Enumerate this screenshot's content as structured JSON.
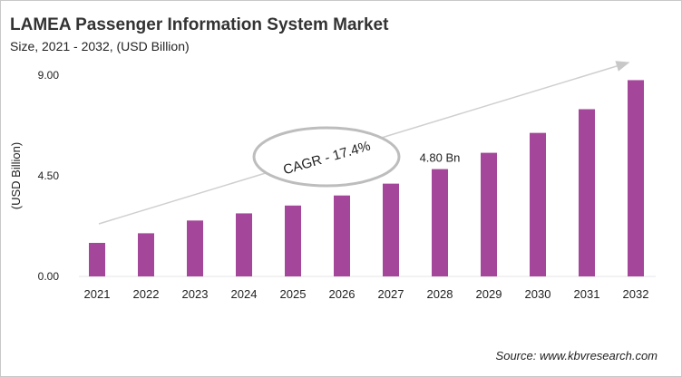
{
  "chart_data": {
    "type": "bar",
    "title": "LAMEA Passenger Information System Market",
    "subtitle": "Size, 2021 - 2032, (USD Billion)",
    "ylabel": "(USD Billion)",
    "xlabel": "",
    "categories": [
      "2021",
      "2022",
      "2023",
      "2024",
      "2025",
      "2026",
      "2027",
      "2028",
      "2029",
      "2030",
      "2031",
      "2032"
    ],
    "values": [
      1.5,
      1.93,
      2.5,
      2.82,
      3.17,
      3.62,
      4.15,
      4.8,
      5.53,
      6.42,
      7.48,
      8.78
    ],
    "ylim": [
      0,
      9
    ],
    "yticks": [
      "0.00",
      "4.50",
      "9.00"
    ],
    "data_labels": [
      {
        "category": "2028",
        "text": "4.80 Bn"
      }
    ],
    "annotation": "CAGR - 17.4%",
    "grid": false,
    "bar_color": "#a4479a",
    "source": "Source: www.kbvresearch.com"
  }
}
